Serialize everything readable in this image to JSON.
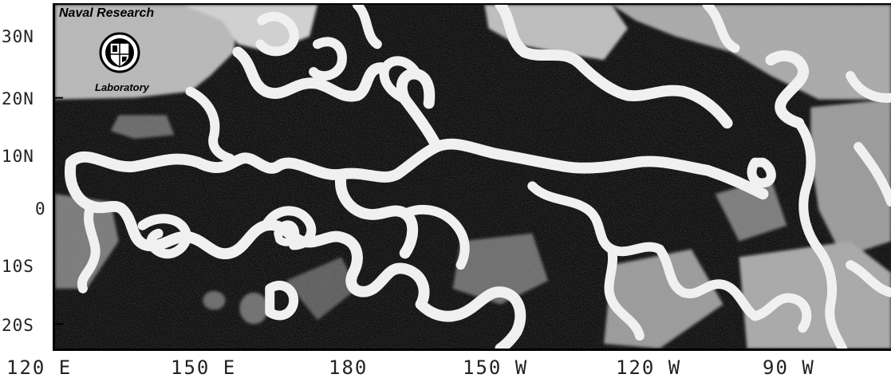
{
  "map": {
    "y_axis_labels": [
      "30N",
      "20N",
      "10N",
      "0",
      "10S",
      "20S"
    ],
    "x_axis_labels": [
      "120 E",
      "150 E",
      "180",
      "150 W",
      "120 W",
      "90 W"
    ],
    "colors": {
      "ocean_dark": "#111111",
      "front_light": "#f4f4f4",
      "mid_gray": "#8a8a8a",
      "frame": "#000000"
    }
  },
  "logo": {
    "line1": "Naval Research",
    "line2": "Laboratory",
    "icon": "nrl-seal-icon"
  }
}
